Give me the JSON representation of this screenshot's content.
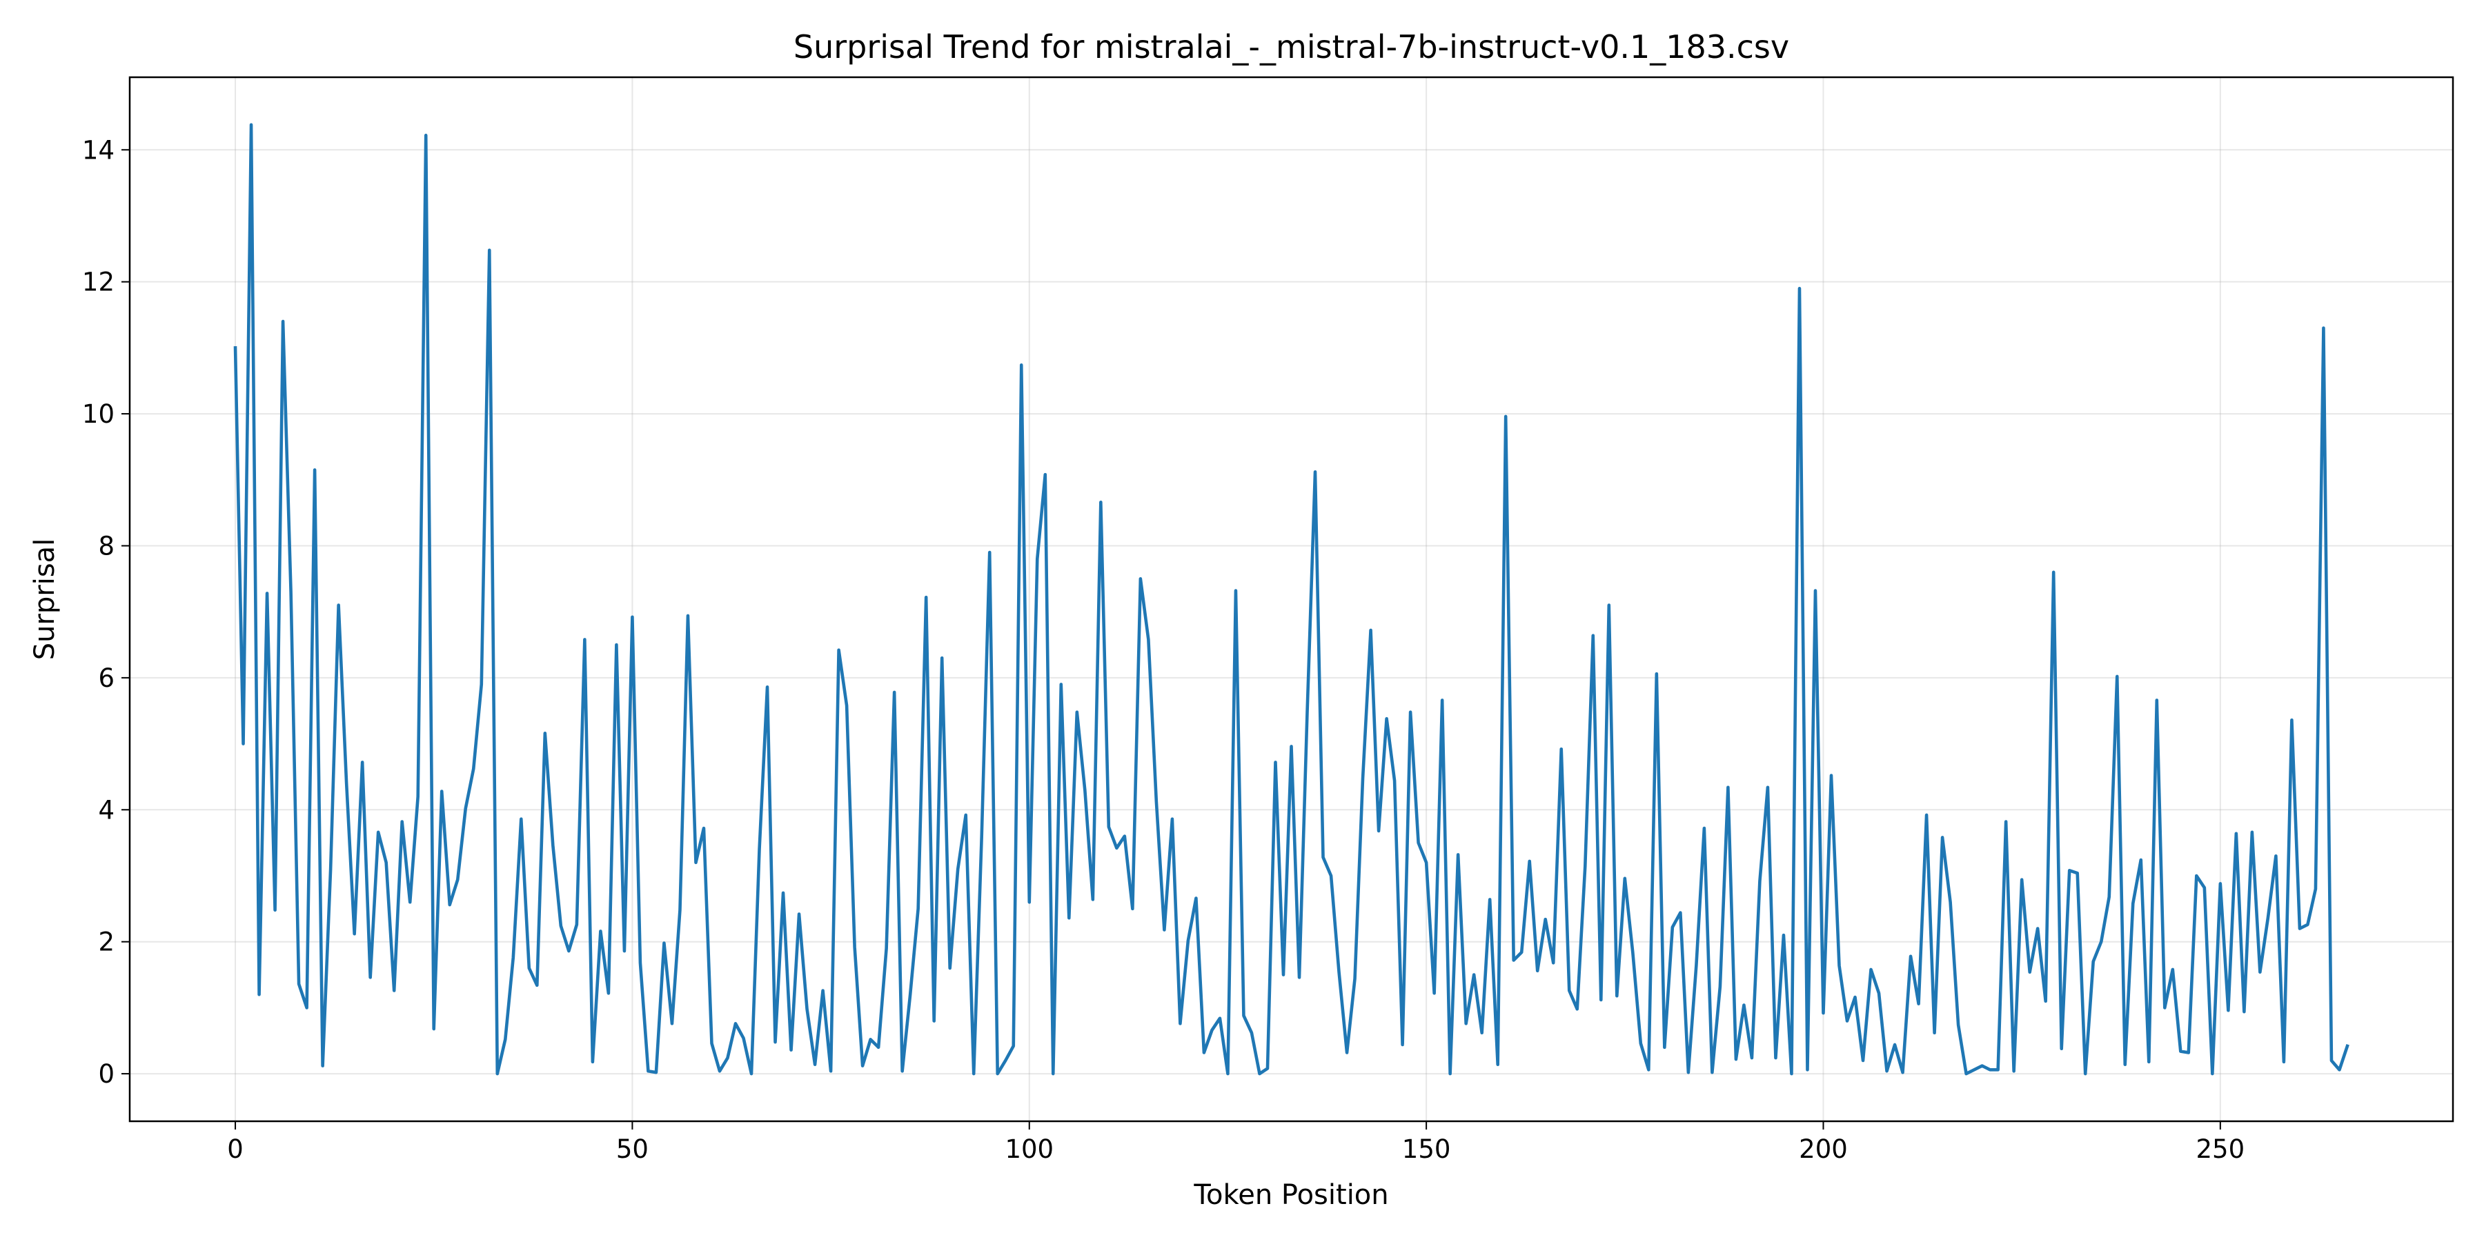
{
  "chart_data": {
    "type": "line",
    "title": "Surprisal Trend for mistralai_-_mistral-7b-instruct-v0.1_183.csv",
    "xlabel": "Token Position",
    "ylabel": "Surprisal",
    "xlim": [
      -13.3,
      279.3
    ],
    "ylim": [
      -0.72,
      15.1
    ],
    "xticks": [
      0,
      50,
      100,
      150,
      200,
      250
    ],
    "yticks": [
      0,
      2,
      4,
      6,
      8,
      10,
      12,
      14
    ],
    "grid": true,
    "legend": "none",
    "series": [
      {
        "color": "#1f77b4",
        "y": [
          11.0,
          5.0,
          14.38,
          1.2,
          7.28,
          2.48,
          11.4,
          7.3,
          1.36,
          1.0,
          9.15,
          0.12,
          3.1,
          7.1,
          4.4,
          2.12,
          4.72,
          1.46,
          3.66,
          3.2,
          1.26,
          3.82,
          2.6,
          4.2,
          14.22,
          0.68,
          4.28,
          2.56,
          2.94,
          4.02,
          4.62,
          5.9,
          12.48,
          0.0,
          0.52,
          1.76,
          3.86,
          1.6,
          1.34,
          5.16,
          3.46,
          2.24,
          1.86,
          2.26,
          6.58,
          0.18,
          2.16,
          1.22,
          6.5,
          1.86,
          6.92,
          1.68,
          0.04,
          0.02,
          1.98,
          0.76,
          2.48,
          6.94,
          3.2,
          3.72,
          0.46,
          0.04,
          0.24,
          0.76,
          0.54,
          0.0,
          3.4,
          5.86,
          0.48,
          2.74,
          0.36,
          2.42,
          0.98,
          0.14,
          1.26,
          0.04,
          6.42,
          5.58,
          1.92,
          0.12,
          0.52,
          0.4,
          1.9,
          5.78,
          0.04,
          1.2,
          2.5,
          7.22,
          0.8,
          6.3,
          1.6,
          3.1,
          3.92,
          0.0,
          3.6,
          7.9,
          0.0,
          0.2,
          0.42,
          10.74,
          2.6,
          7.8,
          9.08,
          0.0,
          5.9,
          2.36,
          5.48,
          4.3,
          2.64,
          8.66,
          3.74,
          3.42,
          3.6,
          2.5,
          7.5,
          6.58,
          4.12,
          2.18,
          3.86,
          0.76,
          2.02,
          2.66,
          0.32,
          0.66,
          0.84,
          0.0,
          7.32,
          0.88,
          0.62,
          0.0,
          0.08,
          4.72,
          1.5,
          4.96,
          1.46,
          5.48,
          9.12,
          3.28,
          3.0,
          1.54,
          0.32,
          1.44,
          4.48,
          6.72,
          3.68,
          5.38,
          4.44,
          0.44,
          5.48,
          3.5,
          3.2,
          1.22,
          5.66,
          0.0,
          3.32,
          0.76,
          1.5,
          0.62,
          2.64,
          0.14,
          9.96,
          1.72,
          1.84,
          3.22,
          1.56,
          2.34,
          1.68,
          4.92,
          1.26,
          0.98,
          3.14,
          6.64,
          1.12,
          7.1,
          1.18,
          2.96,
          1.84,
          0.46,
          0.06,
          6.06,
          0.4,
          2.22,
          2.44,
          0.02,
          1.64,
          3.72,
          0.02,
          1.32,
          4.34,
          0.22,
          1.04,
          0.24,
          2.92,
          4.34,
          0.24,
          2.1,
          0.0,
          11.9,
          0.06,
          7.32,
          0.92,
          4.52,
          1.64,
          0.8,
          1.16,
          0.2,
          1.58,
          1.22,
          0.04,
          0.44,
          0.02,
          1.78,
          1.06,
          3.92,
          0.62,
          3.58,
          2.6,
          0.74,
          0.0,
          0.06,
          0.12,
          0.06,
          0.06,
          3.82,
          0.04,
          2.94,
          1.54,
          2.2,
          1.1,
          7.6,
          0.38,
          3.08,
          3.04,
          0.0,
          1.7,
          2.0,
          2.68,
          6.02,
          0.14,
          2.58,
          3.24,
          0.18,
          5.66,
          1.0,
          1.58,
          0.34,
          0.32,
          3.0,
          2.82,
          0.0,
          2.88,
          0.96,
          3.64,
          0.94,
          3.66,
          1.54,
          2.36,
          3.3,
          0.18,
          5.36,
          2.2,
          2.26,
          2.8,
          11.3,
          0.2,
          0.06,
          0.42
        ]
      }
    ]
  }
}
